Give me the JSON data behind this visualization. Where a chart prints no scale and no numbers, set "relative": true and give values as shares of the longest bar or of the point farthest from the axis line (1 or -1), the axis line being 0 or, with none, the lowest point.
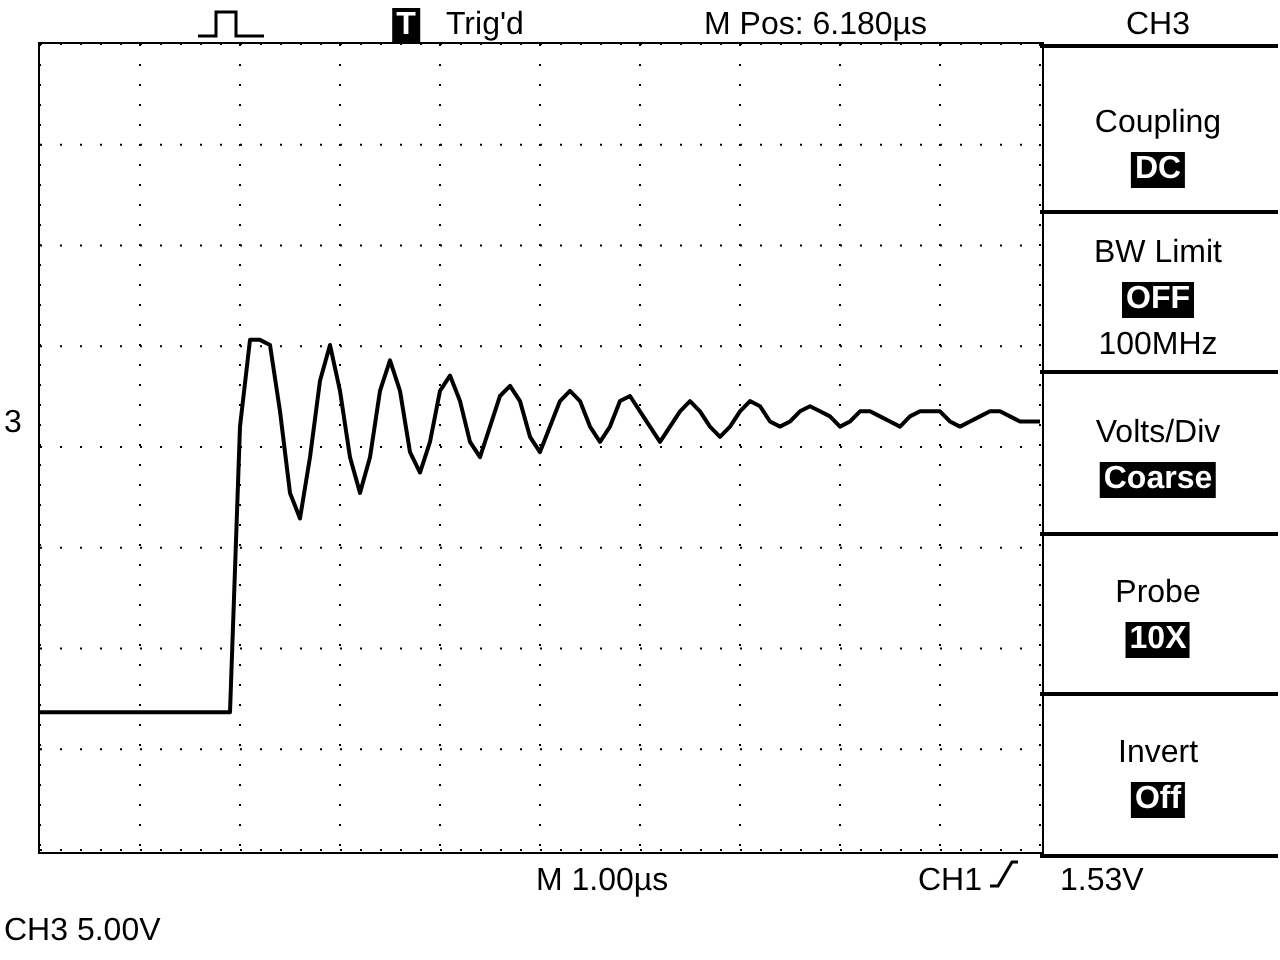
{
  "chart_data": {
    "type": "line",
    "relative": true,
    "grid": true,
    "marker": "none",
    "line_style": "solid",
    "categories": [
      null,
      null,
      null,
      null,
      null,
      null,
      null,
      null,
      null,
      null,
      null,
      null,
      null,
      null,
      null,
      null,
      null,
      null,
      null,
      null,
      null,
      null,
      null,
      null,
      null,
      null,
      null,
      null,
      null,
      null,
      null,
      null,
      null,
      null,
      null,
      null,
      null,
      null,
      null,
      null,
      null,
      null,
      null,
      null,
      null,
      null,
      null,
      null,
      null,
      null,
      null,
      null,
      null,
      null,
      null,
      null,
      null,
      null,
      null,
      null,
      null,
      null,
      null,
      null,
      null,
      null,
      null,
      null,
      null,
      null,
      null,
      null,
      null,
      null,
      null,
      null,
      null,
      null,
      null,
      null,
      null,
      null,
      null,
      null,
      null,
      null,
      null,
      null,
      null,
      null,
      null,
      null,
      null,
      null,
      null,
      null,
      null,
      null,
      null,
      null,
      null
    ],
    "series": [
      {
        "color": "#000000",
        "values": [
          0.27,
          0.27,
          0.27,
          0.27,
          0.27,
          0.27,
          0.27,
          0.27,
          0.27,
          0.27,
          0.27,
          0.27,
          0.27,
          0.27,
          0.27,
          0.27,
          0.27,
          0.27,
          0.27,
          0.27,
          0.83,
          1,
          1,
          0.99,
          0.86,
          0.7,
          0.65,
          0.77,
          0.92,
          0.99,
          0.9,
          0.77,
          0.7,
          0.77,
          0.9,
          0.96,
          0.9,
          0.78,
          0.74,
          0.8,
          0.9,
          0.93,
          0.88,
          0.8,
          0.77,
          0.83,
          0.89,
          0.91,
          0.88,
          0.81,
          0.78,
          0.83,
          0.88,
          0.9,
          0.88,
          0.83,
          0.8,
          0.83,
          0.88,
          0.89,
          0.86,
          0.83,
          0.8,
          0.83,
          0.86,
          0.88,
          0.86,
          0.83,
          0.81,
          0.83,
          0.86,
          0.88,
          0.87,
          0.84,
          0.83,
          0.84,
          0.86,
          0.87,
          0.86,
          0.85,
          0.83,
          0.84,
          0.86,
          0.86,
          0.85,
          0.84,
          0.83,
          0.85,
          0.86,
          0.86,
          0.86,
          0.84,
          0.83,
          0.84,
          0.85,
          0.86,
          0.86,
          0.85,
          0.84,
          0.84,
          0.84
        ]
      }
    ],
    "annotations": [
      "T",
      "Trig'd",
      "M Pos: 6.180µs",
      "CH3",
      "Coupling",
      "DC",
      "BW Limit",
      "OFF",
      "100MHz",
      "Volts/Div",
      "Coarse",
      "Probe",
      "10X",
      "Invert",
      "Off",
      "M 1.00µs",
      "CH1",
      "1.53V",
      "CH3  5.00V",
      "3"
    ]
  }
}
